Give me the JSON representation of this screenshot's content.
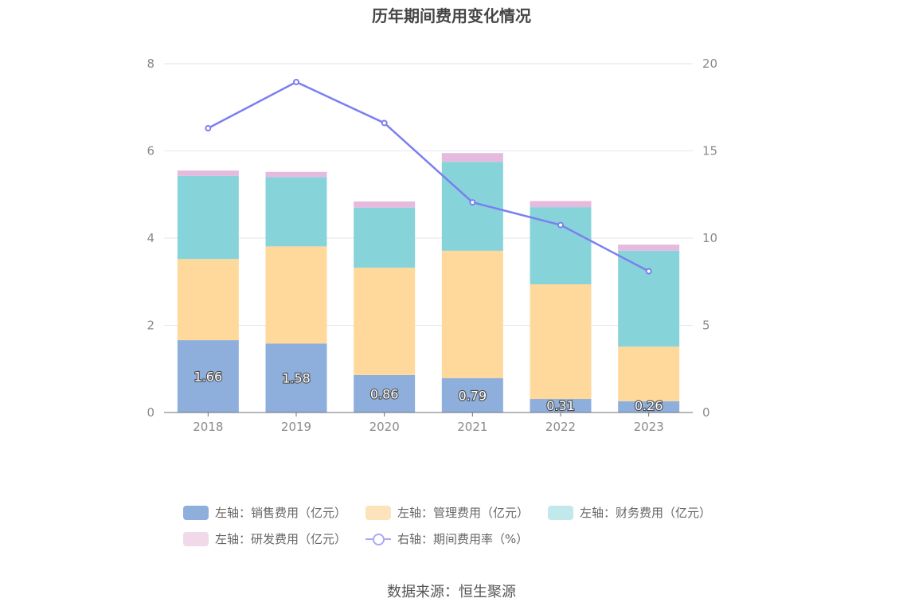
{
  "title": "历年期间费用变化情况",
  "source": "数据来源：恒生聚源",
  "legend": [
    {
      "label": "左轴：销售费用（亿元）",
      "color": "#8eaedb",
      "kind": "bar"
    },
    {
      "label": "左轴：管理费用（亿元）",
      "color": "#fde3bb",
      "kind": "bar"
    },
    {
      "label": "左轴：财务费用（亿元）",
      "color": "#c1e9ec",
      "kind": "bar"
    },
    {
      "label": "左轴：研发费用（亿元）",
      "color": "#f1d9ea",
      "kind": "bar"
    },
    {
      "label": "右轴：期间费用率（%）",
      "color": "#a9a9f5",
      "kind": "line"
    }
  ],
  "chart_data": {
    "type": "bar",
    "stacked": true,
    "categories": [
      "2018",
      "2019",
      "2020",
      "2021",
      "2022",
      "2023"
    ],
    "series": [
      {
        "name": "左轴：销售费用（亿元）",
        "axis": "left",
        "color": "#8eaedb",
        "values": [
          1.66,
          1.58,
          0.86,
          0.79,
          0.31,
          0.26
        ],
        "labels": [
          "1.66",
          "1.58",
          "0.86",
          "0.79",
          "0.31",
          "0.26"
        ]
      },
      {
        "name": "左轴：管理费用（亿元）",
        "axis": "left",
        "color": "#ffd99c",
        "values": [
          1.86,
          2.23,
          2.46,
          2.92,
          2.63,
          1.25
        ]
      },
      {
        "name": "左轴：财务费用（亿元）",
        "axis": "left",
        "color": "#86d4d9",
        "values": [
          1.91,
          1.59,
          1.38,
          2.04,
          1.77,
          2.2
        ]
      },
      {
        "name": "左轴：研发费用（亿元）",
        "axis": "left",
        "color": "#e5bade",
        "values": [
          0.12,
          0.12,
          0.14,
          0.2,
          0.14,
          0.14
        ]
      },
      {
        "name": "右轴：期间费用率（%）",
        "axis": "right",
        "type": "line",
        "color": "#7b7ff0",
        "values": [
          16.3,
          18.95,
          16.6,
          12.05,
          10.75,
          8.1
        ]
      }
    ],
    "y_left": {
      "min": 0,
      "max": 8,
      "ticks": [
        "0",
        "2",
        "4",
        "6",
        "8"
      ]
    },
    "y_right": {
      "min": 0,
      "max": 20,
      "ticks": [
        "0",
        "5",
        "10",
        "15",
        "20"
      ]
    },
    "grid": true,
    "legend_position": "bottom"
  }
}
